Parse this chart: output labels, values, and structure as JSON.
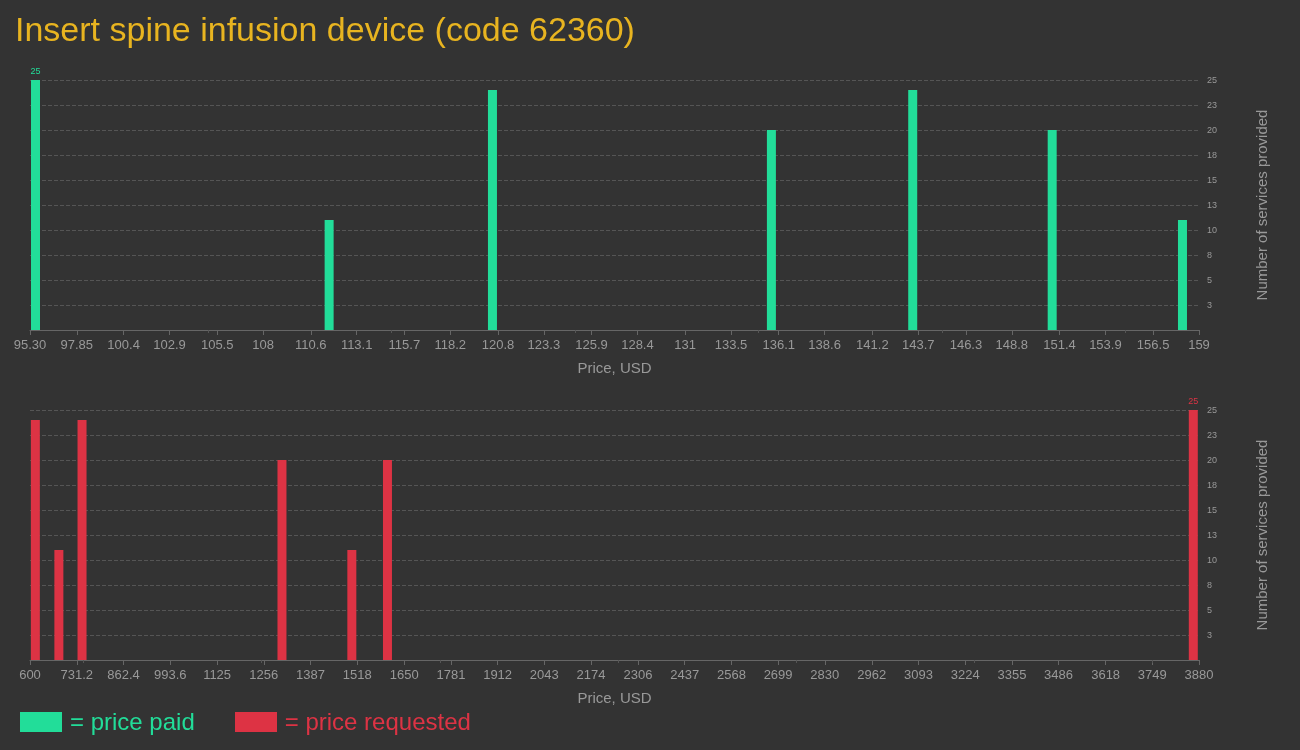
{
  "chart_data": [
    {
      "type": "bar",
      "title": "Insert spine infusion device (code 62360)",
      "xlabel": "Price, USD",
      "ylabel": "Number of services provided",
      "x": [
        95.6,
        111.6,
        120.5,
        135.7,
        143.4,
        151.0,
        158.1
      ],
      "series": [
        {
          "name": "= price paid",
          "color": "#22dd99",
          "values": [
            25,
            11,
            24,
            20,
            24,
            20,
            11
          ],
          "value_labels": [
            "25",
            null,
            null,
            null,
            null,
            null,
            null
          ]
        }
      ],
      "xlim": [
        95.3,
        159
      ],
      "xticks": [
        {
          "value": 95.3,
          "label": "95.30"
        },
        97.85,
        100.4,
        102.9,
        105.5,
        108,
        110.6,
        113.1,
        115.7,
        118.2,
        120.8,
        123.3,
        125.9,
        128.4,
        131,
        133.5,
        136.1,
        138.6,
        141.2,
        143.7,
        146.3,
        148.8,
        151.4,
        153.9,
        156.5,
        159
      ],
      "ylim": [
        0,
        25
      ],
      "yticks": [
        {
          "value": 2.5,
          "label": "3"
        },
        5,
        {
          "value": 7.5,
          "label": "8"
        },
        10,
        {
          "value": 12.5,
          "label": "13"
        },
        15,
        {
          "value": 17.5,
          "label": "18"
        },
        20,
        {
          "value": 22.5,
          "label": "23"
        },
        25
      ],
      "grid": "y",
      "legend": "bottom left"
    },
    {
      "type": "bar",
      "xlabel": "Price, USD",
      "ylabel": "Number of services provided",
      "x": [
        615,
        681,
        746,
        1307,
        1503,
        1603,
        3864
      ],
      "series": [
        {
          "name": "= price requested",
          "color": "#dd3344",
          "values": [
            24,
            11,
            24,
            20,
            11,
            20,
            25
          ],
          "value_labels": [
            null,
            null,
            null,
            null,
            null,
            null,
            "25"
          ]
        }
      ],
      "xlim": [
        600,
        3880
      ],
      "xticks": [
        600,
        731.2,
        862.4,
        993.6,
        1125,
        1256,
        1387,
        1518,
        1650,
        1781,
        1912,
        2043,
        2174,
        2306,
        2437,
        2568,
        2699,
        2830,
        2962,
        3093,
        3224,
        3355,
        3486,
        3618,
        3749,
        3880
      ],
      "ylim": [
        0,
        25
      ],
      "yticks": [
        {
          "value": 2.5,
          "label": "3"
        },
        5,
        {
          "value": 7.5,
          "label": "8"
        },
        10,
        {
          "value": 12.5,
          "label": "13"
        },
        15,
        {
          "value": 17.5,
          "label": "18"
        },
        20,
        {
          "value": 22.5,
          "label": "23"
        },
        25
      ],
      "grid": "y",
      "legend": "bottom left"
    }
  ]
}
